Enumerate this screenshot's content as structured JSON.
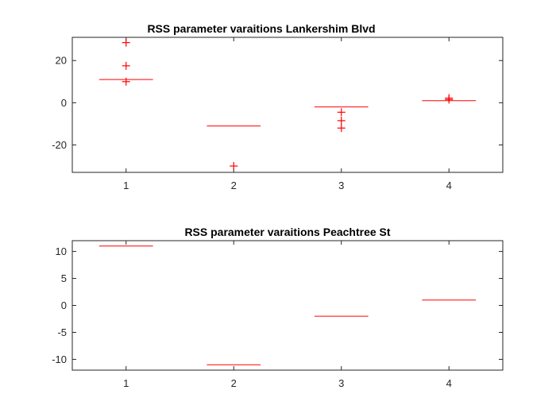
{
  "chart_data": [
    {
      "type": "box",
      "title": "RSS parameter varaitions Lankershim Blvd",
      "xlabel": "",
      "ylabel": "",
      "categories": [
        "1",
        "2",
        "3",
        "4"
      ],
      "xlim": [
        0.5,
        4.5
      ],
      "ylim": [
        -33,
        31
      ],
      "yticks": [
        20,
        0,
        -20
      ],
      "ytick_labels": [
        "20",
        "0",
        "-20"
      ],
      "color": "#ff0000",
      "boxes": [
        {
          "category": "1",
          "median": 11,
          "outliers": [
            28.5,
            17.5,
            10
          ]
        },
        {
          "category": "2",
          "median": -11,
          "outliers": [
            -30
          ]
        },
        {
          "category": "3",
          "median": -2,
          "outliers": [
            -4.5,
            -8.5,
            -12
          ]
        },
        {
          "category": "4",
          "median": 1,
          "outliers": [
            2.2,
            1.5
          ]
        }
      ]
    },
    {
      "type": "box",
      "title": "RSS parameter varaitions Peachtree St",
      "xlabel": "",
      "ylabel": "",
      "categories": [
        "1",
        "2",
        "3",
        "4"
      ],
      "xlim": [
        0.5,
        4.5
      ],
      "ylim": [
        -12,
        12
      ],
      "yticks": [
        10,
        5,
        0,
        -5,
        -10
      ],
      "ytick_labels": [
        "10",
        "5",
        "0",
        "-5",
        "-10"
      ],
      "color": "#ff0000",
      "boxes": [
        {
          "category": "1",
          "median": 11,
          "outliers": []
        },
        {
          "category": "2",
          "median": -11,
          "outliers": []
        },
        {
          "category": "3",
          "median": -2,
          "outliers": []
        },
        {
          "category": "4",
          "median": 1,
          "outliers": []
        }
      ]
    }
  ]
}
